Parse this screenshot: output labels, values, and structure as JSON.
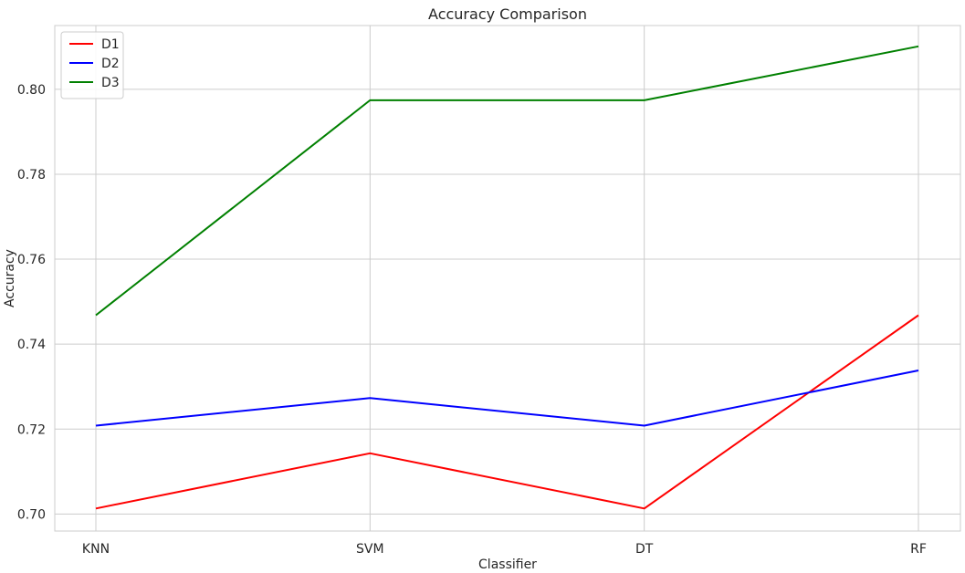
{
  "chart_data": {
    "type": "line",
    "title": "Accuracy Comparison",
    "xlabel": "Classifier",
    "ylabel": "Accuracy",
    "categories": [
      "KNN",
      "SVM",
      "DT",
      "RF"
    ],
    "ylim": [
      0.696,
      0.815
    ],
    "yticks": [
      "0.70",
      "0.72",
      "0.74",
      "0.76",
      "0.78",
      "0.80"
    ],
    "grid": true,
    "legend_position": "top-left",
    "series": [
      {
        "name": "D1",
        "color": "#ff0000",
        "values": [
          0.7013,
          0.7143,
          0.7013,
          0.7468
        ]
      },
      {
        "name": "D2",
        "color": "#0000ff",
        "values": [
          0.7208,
          0.7273,
          0.7208,
          0.7338
        ]
      },
      {
        "name": "D3",
        "color": "#008000",
        "values": [
          0.7468,
          0.7974,
          0.7974,
          0.8101
        ]
      }
    ]
  }
}
